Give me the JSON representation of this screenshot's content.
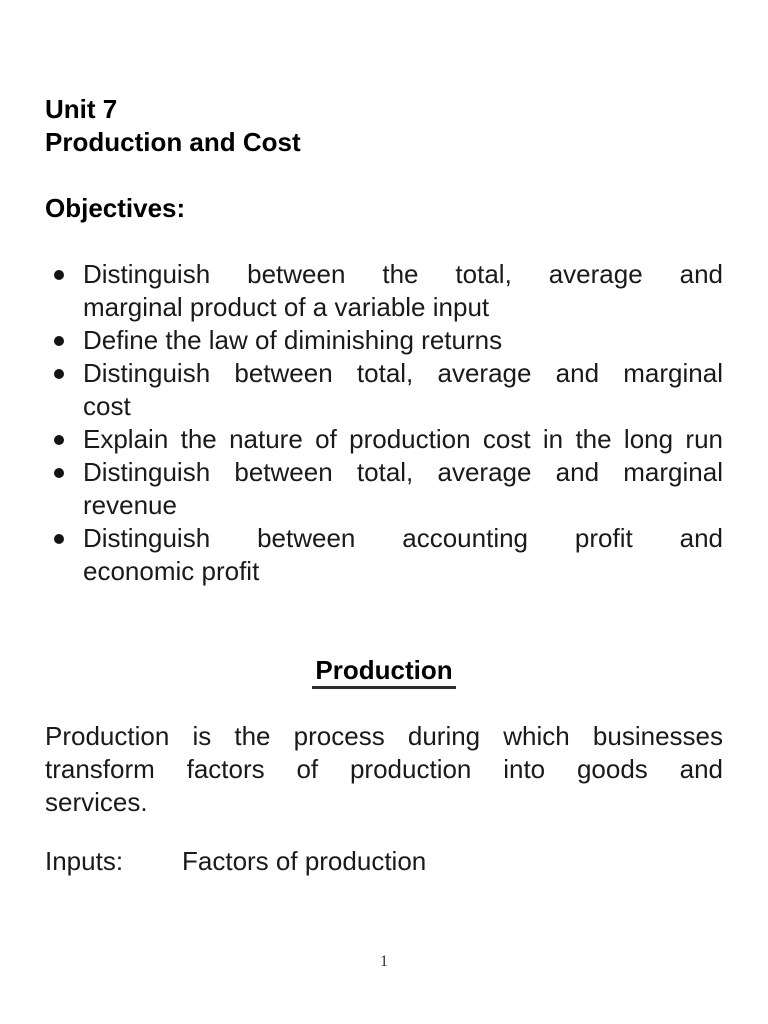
{
  "doc": {
    "header_lines": [
      "Unit 7",
      "Production and Cost"
    ],
    "objectives_heading": "Objectives:",
    "objectives": [
      {
        "lines": [
          "Distinguish between the total, average and",
          "marginal product of a variable input"
        ]
      },
      {
        "lines": [
          "Define the law of diminishing returns"
        ]
      },
      {
        "lines": [
          "Distinguish between total, average and marginal",
          "cost"
        ]
      },
      {
        "lines": [
          "Explain the nature of production cost in the long run"
        ]
      },
      {
        "lines": [
          "Distinguish between total, average and marginal",
          "revenue"
        ]
      },
      {
        "lines": [
          "Distinguish between accounting profit and",
          "economic profit"
        ]
      }
    ],
    "section_heading": "Production",
    "paragraph_lines": [
      "Production is the process during which businesses",
      "transform factors of production into goods and",
      "services."
    ],
    "inputs_label": "Inputs:",
    "inputs_value": "Factors of production",
    "page_number": "1",
    "colors": {
      "text": "#1a1a1a",
      "heading": "#000000",
      "background": "#ffffff"
    }
  }
}
